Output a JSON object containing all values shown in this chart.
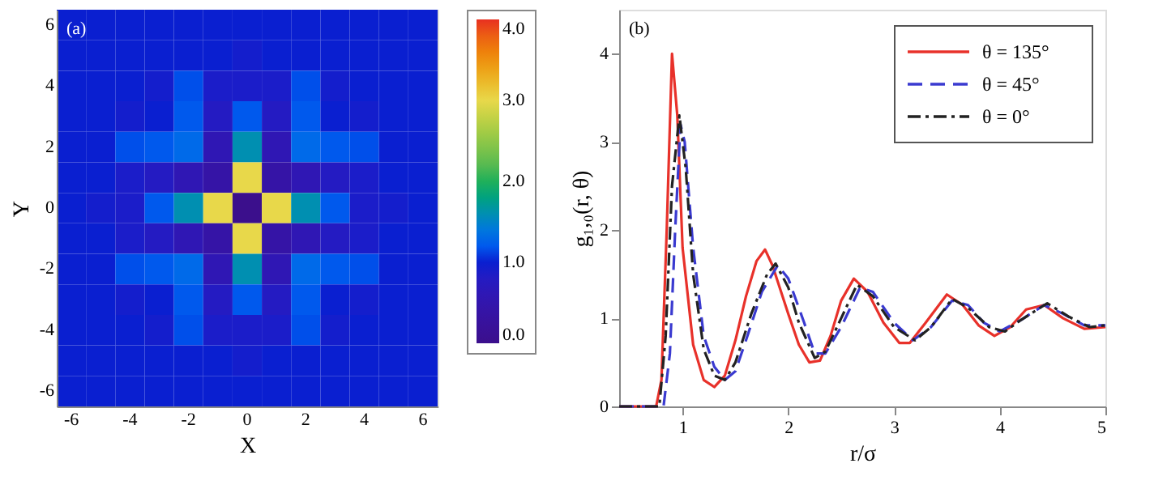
{
  "chart_data": [
    {
      "type": "heatmap",
      "xlabel": "X",
      "ylabel": "Y",
      "annotations": [
        "(a)"
      ],
      "categories": [
        "-6",
        null,
        "-4",
        null,
        "-2",
        null,
        "0",
        null,
        "2",
        null,
        "4",
        null,
        "6"
      ],
      "y_categories": [
        "6",
        null,
        "4",
        null,
        "2",
        null,
        "0",
        null,
        "-2",
        null,
        "-4",
        null,
        "-6"
      ],
      "cells": [
        [
          1.0,
          1.0,
          1.0,
          1.0,
          1.0,
          1.0,
          1.0,
          1.0,
          1.0,
          1.0,
          1.0,
          1.0,
          1.0
        ],
        [
          1.0,
          1.0,
          1.0,
          1.0,
          1.0,
          1.0,
          0.95,
          1.0,
          1.0,
          1.0,
          1.0,
          1.0,
          1.0
        ],
        [
          1.0,
          1.0,
          1.0,
          0.95,
          1.15,
          0.9,
          0.9,
          0.9,
          1.15,
          0.95,
          1.0,
          1.0,
          1.0
        ],
        [
          1.0,
          1.0,
          0.95,
          1.0,
          1.2,
          0.8,
          1.2,
          0.8,
          1.2,
          1.0,
          0.95,
          1.0,
          1.0
        ],
        [
          1.0,
          1.0,
          1.15,
          1.2,
          1.3,
          0.6,
          1.6,
          0.6,
          1.3,
          1.2,
          1.15,
          1.0,
          1.0
        ],
        [
          1.0,
          1.0,
          0.9,
          0.8,
          0.6,
          0.4,
          3.0,
          0.4,
          0.6,
          0.8,
          0.9,
          1.0,
          1.0
        ],
        [
          1.0,
          0.95,
          0.9,
          1.2,
          1.6,
          3.0,
          0.0,
          3.0,
          1.6,
          1.2,
          0.9,
          0.95,
          1.0
        ],
        [
          1.0,
          1.0,
          0.9,
          0.8,
          0.6,
          0.4,
          3.0,
          0.4,
          0.6,
          0.8,
          0.9,
          1.0,
          1.0
        ],
        [
          1.0,
          1.0,
          1.15,
          1.2,
          1.3,
          0.6,
          1.6,
          0.6,
          1.3,
          1.2,
          1.15,
          1.0,
          1.0
        ],
        [
          1.0,
          1.0,
          0.95,
          1.0,
          1.2,
          0.8,
          1.2,
          0.8,
          1.2,
          1.0,
          0.95,
          1.0,
          1.0
        ],
        [
          1.0,
          1.0,
          1.0,
          0.95,
          1.15,
          0.9,
          0.9,
          0.9,
          1.15,
          0.95,
          1.0,
          1.0,
          1.0
        ],
        [
          1.0,
          1.0,
          1.0,
          1.0,
          1.0,
          1.0,
          0.95,
          1.0,
          1.0,
          1.0,
          1.0,
          1.0,
          1.0
        ],
        [
          1.0,
          1.0,
          1.0,
          1.0,
          1.0,
          1.0,
          1.0,
          1.0,
          1.0,
          1.0,
          1.0,
          1.0,
          1.0
        ]
      ],
      "clim": [
        0,
        4
      ],
      "cticks": [
        {
          "value": 0,
          "label": "0.0"
        },
        {
          "value": 1,
          "label": "1.0"
        },
        {
          "value": 2,
          "label": "2.0"
        },
        {
          "value": 3,
          "label": "3.0"
        },
        {
          "value": 4,
          "label": "4.0"
        }
      ],
      "colors": [
        "#3b0f8c",
        "#0a1fd0",
        "#1fb05a",
        "#e8d84a",
        "#e83020"
      ]
    },
    {
      "type": "line",
      "xlabel": "r/σ",
      "ylabel": "g₁,₀(r, θ)",
      "annotations": [
        "(b)"
      ],
      "legend": "top right",
      "grid": false,
      "xlim": [
        0.4,
        5
      ],
      "ylim": [
        0,
        4.5
      ],
      "xticks": [
        1,
        2,
        3,
        4,
        5
      ],
      "yticks": [
        0,
        1,
        2,
        3,
        4
      ],
      "series": [
        {
          "name": "θ = 135°",
          "color": "#e8312a",
          "line_style": "solid",
          "x": [
            0.4,
            0.75,
            0.8,
            0.85,
            0.9,
            0.95,
            1.0,
            1.1,
            1.2,
            1.3,
            1.4,
            1.5,
            1.6,
            1.7,
            1.78,
            1.85,
            2.0,
            2.1,
            2.2,
            2.3,
            2.4,
            2.5,
            2.62,
            2.75,
            2.9,
            3.05,
            3.15,
            3.3,
            3.5,
            3.65,
            3.8,
            3.95,
            4.1,
            4.25,
            4.42,
            4.6,
            4.8,
            5.0
          ],
          "values": [
            0,
            0,
            0.3,
            2.0,
            4.0,
            3.3,
            1.8,
            0.7,
            0.3,
            0.22,
            0.35,
            0.75,
            1.25,
            1.65,
            1.78,
            1.6,
            1.05,
            0.7,
            0.5,
            0.52,
            0.8,
            1.2,
            1.45,
            1.3,
            0.95,
            0.72,
            0.72,
            0.95,
            1.27,
            1.15,
            0.92,
            0.8,
            0.9,
            1.1,
            1.15,
            1.0,
            0.88,
            0.9
          ]
        },
        {
          "name": "θ = 45°",
          "color": "#3a3ad0",
          "line_style": "dashed",
          "x": [
            0.4,
            0.82,
            0.88,
            0.93,
            0.98,
            1.02,
            1.1,
            1.2,
            1.3,
            1.4,
            1.5,
            1.6,
            1.75,
            1.9,
            2.0,
            2.15,
            2.25,
            2.35,
            2.5,
            2.68,
            2.8,
            3.0,
            3.18,
            3.35,
            3.55,
            3.7,
            3.85,
            4.0,
            4.2,
            4.42,
            4.6,
            4.8,
            5.0
          ],
          "values": [
            0,
            0,
            0.6,
            2.0,
            3.2,
            3.0,
            1.8,
            0.8,
            0.45,
            0.3,
            0.4,
            0.75,
            1.3,
            1.6,
            1.45,
            0.95,
            0.6,
            0.6,
            0.9,
            1.35,
            1.3,
            0.95,
            0.75,
            0.9,
            1.2,
            1.15,
            0.95,
            0.85,
            0.98,
            1.15,
            1.05,
            0.92,
            0.92
          ]
        },
        {
          "name": "θ = 0°",
          "color": "#222222",
          "line_style": "dashdot",
          "x": [
            0.4,
            0.78,
            0.84,
            0.9,
            0.97,
            1.03,
            1.1,
            1.2,
            1.3,
            1.4,
            1.5,
            1.65,
            1.8,
            1.88,
            2.0,
            2.1,
            2.25,
            2.35,
            2.5,
            2.65,
            2.8,
            3.0,
            3.2,
            3.35,
            3.55,
            3.7,
            3.9,
            4.05,
            4.2,
            4.45,
            4.65,
            4.85,
            5.0
          ],
          "values": [
            0,
            0,
            0.8,
            2.5,
            3.3,
            2.7,
            1.5,
            0.65,
            0.35,
            0.3,
            0.5,
            1.05,
            1.5,
            1.62,
            1.35,
            0.95,
            0.55,
            0.62,
            1.0,
            1.38,
            1.25,
            0.9,
            0.75,
            0.9,
            1.22,
            1.12,
            0.9,
            0.85,
            0.98,
            1.17,
            1.02,
            0.9,
            0.92
          ]
        }
      ]
    }
  ]
}
